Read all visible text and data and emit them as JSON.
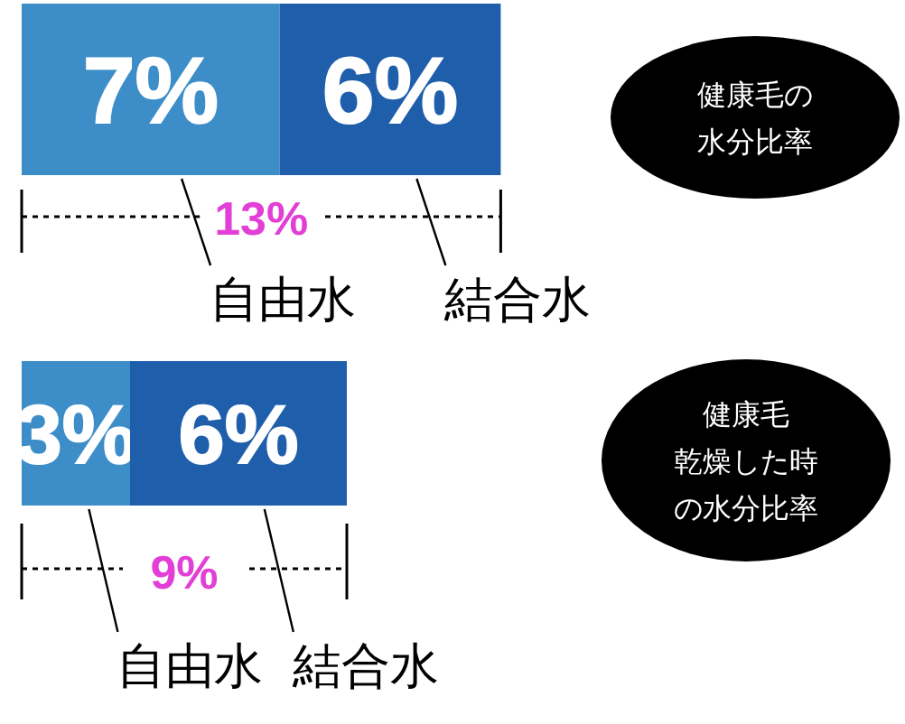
{
  "chart_data": [
    {
      "type": "bar",
      "orientation": "horizontal",
      "stacked": true,
      "annotations": [
        "健康毛の水分比率"
      ],
      "categories": [
        null
      ],
      "series": [
        {
          "name": "自由水",
          "color": "#3d8ec8",
          "values": [
            7
          ],
          "value_labels": [
            "7%"
          ]
        },
        {
          "name": "結合水",
          "color": "#1e5eab",
          "values": [
            6
          ],
          "value_labels": [
            "6%"
          ]
        }
      ],
      "totals": [
        "13%"
      ]
    },
    {
      "type": "bar",
      "orientation": "horizontal",
      "stacked": true,
      "annotations": [
        "健康毛乾燥した時の水分比率"
      ],
      "categories": [
        null
      ],
      "series": [
        {
          "name": "自由水",
          "color": "#3d8ec8",
          "values": [
            3
          ],
          "value_labels": [
            "3%"
          ]
        },
        {
          "name": "結合水",
          "color": "#1e5eab",
          "values": [
            6
          ],
          "value_labels": [
            "6%"
          ]
        }
      ],
      "totals": [
        "9%"
      ]
    }
  ]
}
